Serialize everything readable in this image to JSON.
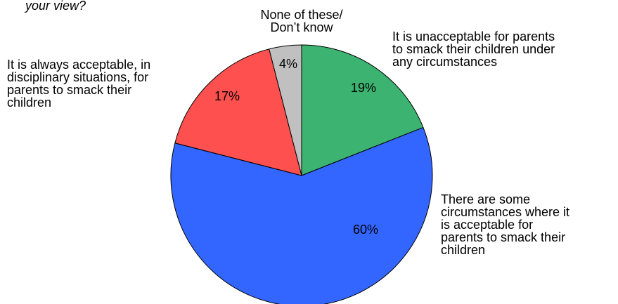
{
  "chart_data": {
    "type": "pie",
    "title": "your view?",
    "start_angle_deg": 0,
    "direction": "clockwise",
    "slices": [
      {
        "label": "It is unacceptable for parents to smack their children under any circumstances",
        "label_lines": [
          "It is unacceptable for parents",
          "to smack their children under",
          "any circumstances"
        ],
        "value": 19,
        "display": "19%",
        "color": "#3cb371"
      },
      {
        "label": "There are some circumstances where it is acceptable for parents to smack their children",
        "label_lines": [
          "There are some",
          "circumstances where it",
          "is acceptable for",
          "parents to smack their",
          "children"
        ],
        "value": 60,
        "display": "60%",
        "color": "#3366ff"
      },
      {
        "label": "It is always acceptable, in disciplinary situations, for parents to smack their children",
        "label_lines": [
          "It is always acceptable, in",
          "disciplinary situations, for",
          "parents to smack their",
          "children"
        ],
        "value": 17,
        "display": "17%",
        "color": "#ff5050"
      },
      {
        "label": "None of these/ Don’t know",
        "label_lines": [
          "None of these/",
          "Don’t know"
        ],
        "value": 4,
        "display": "4%",
        "color": "#c0c0c0"
      }
    ]
  }
}
